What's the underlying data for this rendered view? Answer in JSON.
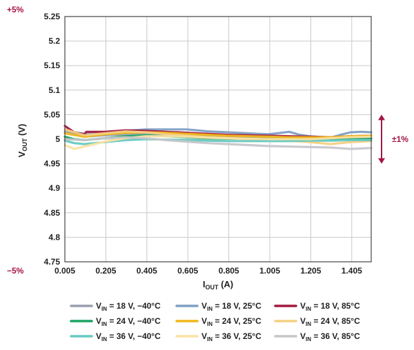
{
  "chart_data": {
    "type": "line",
    "xlabel": {
      "main": "I",
      "sub": "OUT",
      "unit": " (A)"
    },
    "ylabel": {
      "main": "V",
      "sub": "OUT",
      "unit": " (V)"
    },
    "xlim": [
      0.005,
      1.5
    ],
    "ylim": [
      4.75,
      5.25
    ],
    "x_ticks": [
      0.005,
      0.205,
      0.405,
      0.605,
      0.805,
      1.005,
      1.205,
      1.405
    ],
    "x_tick_labels": [
      "0.005",
      "0.205",
      "0.405",
      "0.605",
      "0.805",
      "1.005",
      "1.205",
      "1.405"
    ],
    "y_ticks": [
      4.75,
      4.8,
      4.85,
      4.9,
      4.95,
      5.0,
      5.05,
      5.1,
      5.15,
      5.2,
      5.25
    ],
    "y_tick_labels": [
      "4.75",
      "4.8",
      "4.85",
      "4.9",
      "4.95",
      "5",
      "5.05",
      "5.1",
      "5.15",
      "5.2",
      "5.25"
    ],
    "grid": true,
    "legend_position": "bottom",
    "annotations": {
      "top_left": "+5%",
      "bottom_left": "−5%",
      "right_band": "±1%",
      "right_band_range": [
        4.95,
        5.05
      ],
      "annotation_color": "#a3154a"
    },
    "series": [
      {
        "sub": "IN",
        "label": " = 18 V, −40°C",
        "color": "#9aa0b0",
        "x": [
          0.005,
          0.1,
          0.2,
          0.3,
          0.4,
          0.5,
          0.6,
          0.7,
          0.8,
          0.9,
          1.0,
          1.1,
          1.2,
          1.3,
          1.4,
          1.5
        ],
        "y": [
          5.015,
          5.005,
          5.008,
          5.01,
          5.012,
          5.01,
          5.008,
          5.006,
          5.005,
          5.004,
          5.003,
          5.003,
          5.002,
          5.002,
          5.002,
          5.002
        ]
      },
      {
        "sub": "IN",
        "label": " = 18 V, 25°C",
        "color": "#7f9fc4",
        "x": [
          0.005,
          0.05,
          0.1,
          0.2,
          0.3,
          0.4,
          0.5,
          0.6,
          0.65,
          0.7,
          0.8,
          0.9,
          1.0,
          1.1,
          1.15,
          1.2,
          1.3,
          1.35,
          1.4,
          1.45,
          1.5
        ],
        "y": [
          5.02,
          5.014,
          5.011,
          5.014,
          5.017,
          5.02,
          5.02,
          5.02,
          5.018,
          5.016,
          5.014,
          5.012,
          5.01,
          5.015,
          5.009,
          5.006,
          5.003,
          5.009,
          5.014,
          5.015,
          5.014
        ]
      },
      {
        "sub": "IN",
        "label": " = 18 V, 85°C",
        "color": "#a3193f",
        "x": [
          0.005,
          0.05,
          0.1,
          0.11,
          0.2,
          0.3,
          0.4,
          0.5,
          0.6,
          0.7,
          0.8,
          0.9,
          1.0,
          1.1,
          1.2,
          1.3,
          1.4,
          1.5
        ],
        "y": [
          5.027,
          5.014,
          5.01,
          5.015,
          5.015,
          5.018,
          5.017,
          5.015,
          5.013,
          5.011,
          5.009,
          5.008,
          5.007,
          5.006,
          5.005,
          5.004,
          5.006,
          5.007
        ]
      },
      {
        "sub": "IN",
        "label": " = 24 V, −40°C",
        "color": "#1aa564",
        "x": [
          0.005,
          0.05,
          0.1,
          0.2,
          0.3,
          0.4,
          0.5,
          0.6,
          0.7,
          0.8,
          0.9,
          1.0,
          1.1,
          1.2,
          1.3,
          1.4,
          1.5
        ],
        "y": [
          5.005,
          5.0,
          4.998,
          5.002,
          5.006,
          5.008,
          5.006,
          5.004,
          5.002,
          5.001,
          5.001,
          5.0,
          5.0,
          5.0,
          5.0,
          5.002,
          5.002
        ]
      },
      {
        "sub": "IN",
        "label": " = 24 V, 25°C",
        "color": "#f0b71a",
        "x": [
          0.005,
          0.1,
          0.2,
          0.3,
          0.4,
          0.5,
          0.6,
          0.7,
          0.8,
          0.9,
          1.0,
          1.1,
          1.2,
          1.3,
          1.4,
          1.5
        ],
        "y": [
          5.012,
          5.005,
          5.01,
          5.013,
          5.014,
          5.013,
          5.011,
          5.009,
          5.007,
          5.006,
          5.005,
          5.004,
          5.004,
          5.004,
          5.006,
          5.007
        ]
      },
      {
        "sub": "IN",
        "label": " = 24 V, 85°C",
        "color": "#f5cf82",
        "x": [
          0.005,
          0.1,
          0.2,
          0.3,
          0.4,
          0.5,
          0.6,
          0.7,
          0.8,
          0.9,
          1.0,
          1.1,
          1.2,
          1.3,
          1.4,
          1.5
        ],
        "y": [
          5.02,
          5.008,
          5.012,
          5.016,
          5.014,
          5.01,
          5.007,
          5.004,
          5.002,
          5.0,
          4.999,
          4.997,
          4.994,
          4.99,
          4.994,
          4.996
        ]
      },
      {
        "sub": "IN",
        "label": " = 36 V, −40°C",
        "color": "#66c9c0",
        "x": [
          0.005,
          0.05,
          0.1,
          0.2,
          0.3,
          0.4,
          0.5,
          0.6,
          0.7,
          0.8,
          0.9,
          1.0,
          1.1,
          1.2,
          1.3,
          1.4,
          1.5
        ],
        "y": [
          4.997,
          4.992,
          4.99,
          4.994,
          4.998,
          5.0,
          4.999,
          4.998,
          4.997,
          4.996,
          4.996,
          4.996,
          4.996,
          4.997,
          4.997,
          4.998,
          4.998
        ]
      },
      {
        "sub": "IN",
        "label": " = 36 V, 25°C",
        "color": "#fbe2a4",
        "x": [
          0.005,
          0.05,
          0.1,
          0.2,
          0.3,
          0.4,
          0.5,
          0.6,
          0.7,
          0.8,
          0.9,
          1.0,
          1.1,
          1.2,
          1.3,
          1.4,
          1.5
        ],
        "y": [
          4.988,
          4.98,
          4.985,
          4.995,
          5.002,
          5.006,
          5.006,
          5.005,
          5.003,
          5.002,
          5.001,
          5.0,
          5.0,
          5.0,
          5.002,
          5.004,
          5.005
        ]
      },
      {
        "sub": "IN",
        "label": " = 36 V, 85°C",
        "color": "#c6c6cb",
        "x": [
          0.005,
          0.1,
          0.2,
          0.3,
          0.4,
          0.5,
          0.6,
          0.7,
          0.8,
          0.9,
          1.0,
          1.1,
          1.2,
          1.3,
          1.4,
          1.5
        ],
        "y": [
          5.0,
          4.998,
          5.002,
          5.004,
          5.002,
          4.998,
          4.995,
          4.992,
          4.99,
          4.988,
          4.986,
          4.985,
          4.984,
          4.983,
          4.98,
          4.982
        ]
      }
    ]
  }
}
